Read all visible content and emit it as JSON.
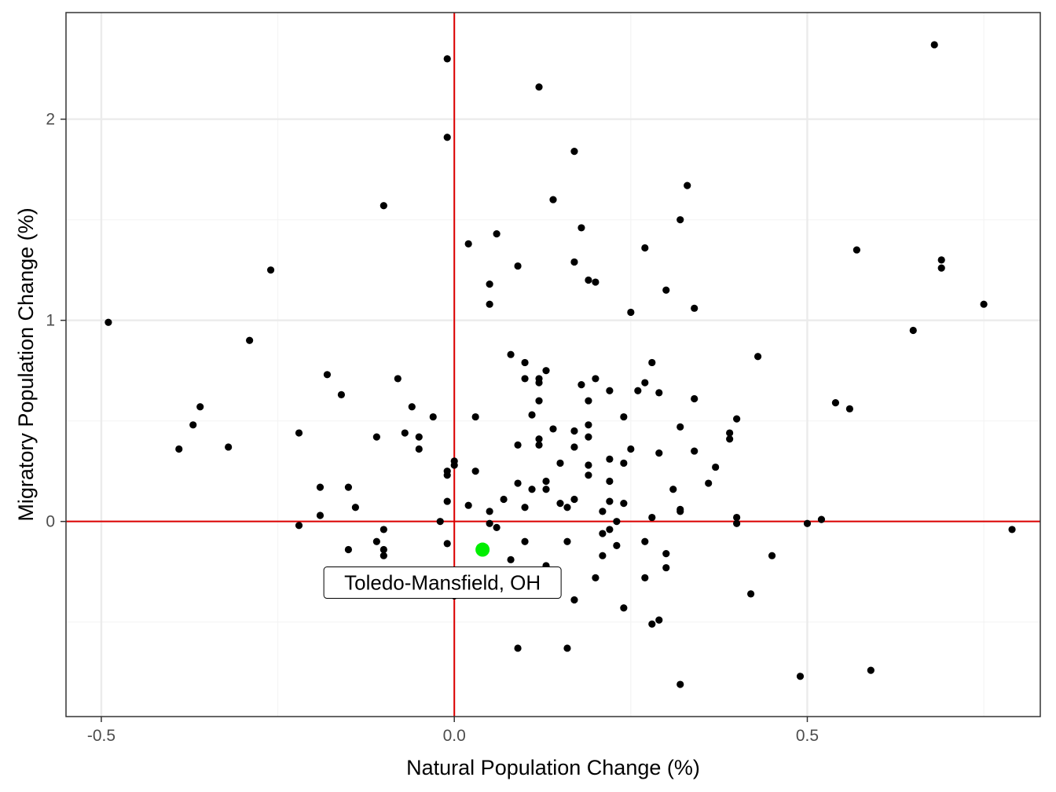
{
  "colors": {
    "background": "#ffffff",
    "panel_border": "#333333",
    "grid_major": "#ebebeb",
    "grid_minor": "#f4f4f4",
    "reference_line": "#dd0000",
    "point": "#000000",
    "highlight": "#00ee00"
  },
  "chart_data": {
    "type": "scatter",
    "title": "",
    "xlabel": "Natural Population Change (%)",
    "ylabel": "Migratory Population Change (%)",
    "xlim": [
      -0.55,
      0.83
    ],
    "ylim": [
      -0.97,
      2.53
    ],
    "x_ticks": [
      {
        "value": -0.5,
        "label": "-0.5"
      },
      {
        "value": 0.0,
        "label": "0.0"
      },
      {
        "value": 0.5,
        "label": "0.5"
      }
    ],
    "y_ticks": [
      {
        "value": 0,
        "label": "0"
      },
      {
        "value": 1,
        "label": "1"
      },
      {
        "value": 2,
        "label": "2"
      }
    ],
    "x_minor_ticks": [
      -0.25,
      0.25,
      0.75
    ],
    "y_minor_ticks": [
      -0.5,
      0.5,
      1.5
    ],
    "grid": true,
    "reference_lines": {
      "x": 0,
      "y": 0
    },
    "highlight": {
      "label": "Toledo-Mansfield, OH",
      "x": 0.04,
      "y": -0.14
    },
    "points": [
      {
        "x": -0.49,
        "y": 0.99
      },
      {
        "x": -0.39,
        "y": 0.36
      },
      {
        "x": -0.37,
        "y": 0.48
      },
      {
        "x": -0.36,
        "y": 0.57
      },
      {
        "x": -0.32,
        "y": 0.37
      },
      {
        "x": -0.29,
        "y": 0.9
      },
      {
        "x": -0.26,
        "y": 1.25
      },
      {
        "x": -0.22,
        "y": 0.44
      },
      {
        "x": -0.22,
        "y": -0.02
      },
      {
        "x": -0.19,
        "y": 0.17
      },
      {
        "x": -0.19,
        "y": 0.03
      },
      {
        "x": -0.18,
        "y": 0.73
      },
      {
        "x": -0.16,
        "y": 0.63
      },
      {
        "x": -0.15,
        "y": 0.17
      },
      {
        "x": -0.15,
        "y": -0.14
      },
      {
        "x": -0.14,
        "y": 0.07
      },
      {
        "x": -0.11,
        "y": 0.42
      },
      {
        "x": -0.11,
        "y": -0.1
      },
      {
        "x": -0.1,
        "y": 1.57
      },
      {
        "x": -0.1,
        "y": -0.04
      },
      {
        "x": -0.1,
        "y": -0.14
      },
      {
        "x": -0.1,
        "y": -0.17
      },
      {
        "x": -0.08,
        "y": 0.71
      },
      {
        "x": -0.07,
        "y": 0.44
      },
      {
        "x": -0.06,
        "y": 0.57
      },
      {
        "x": -0.05,
        "y": 0.42
      },
      {
        "x": -0.05,
        "y": 0.36
      },
      {
        "x": -0.03,
        "y": 0.52
      },
      {
        "x": -0.02,
        "y": 0.0
      },
      {
        "x": -0.01,
        "y": 2.3
      },
      {
        "x": -0.01,
        "y": 1.91
      },
      {
        "x": -0.01,
        "y": 0.25
      },
      {
        "x": -0.01,
        "y": 0.23
      },
      {
        "x": -0.01,
        "y": 0.1
      },
      {
        "x": -0.01,
        "y": -0.11
      },
      {
        "x": 0.0,
        "y": 0.3
      },
      {
        "x": 0.0,
        "y": 0.28
      },
      {
        "x": 0.0,
        "y": -0.37
      },
      {
        "x": 0.02,
        "y": 1.38
      },
      {
        "x": 0.02,
        "y": 0.08
      },
      {
        "x": 0.03,
        "y": 0.52
      },
      {
        "x": 0.03,
        "y": 0.25
      },
      {
        "x": 0.05,
        "y": 1.18
      },
      {
        "x": 0.05,
        "y": 1.08
      },
      {
        "x": 0.05,
        "y": 0.05
      },
      {
        "x": 0.05,
        "y": -0.01
      },
      {
        "x": 0.06,
        "y": 1.43
      },
      {
        "x": 0.06,
        "y": -0.03
      },
      {
        "x": 0.07,
        "y": 0.11
      },
      {
        "x": 0.08,
        "y": 0.83
      },
      {
        "x": 0.08,
        "y": -0.19
      },
      {
        "x": 0.09,
        "y": 1.27
      },
      {
        "x": 0.09,
        "y": 0.38
      },
      {
        "x": 0.09,
        "y": 0.19
      },
      {
        "x": 0.09,
        "y": -0.63
      },
      {
        "x": 0.1,
        "y": 0.79
      },
      {
        "x": 0.1,
        "y": 0.71
      },
      {
        "x": 0.1,
        "y": 0.07
      },
      {
        "x": 0.1,
        "y": -0.1
      },
      {
        "x": 0.11,
        "y": 0.53
      },
      {
        "x": 0.11,
        "y": 0.16
      },
      {
        "x": 0.12,
        "y": 2.16
      },
      {
        "x": 0.12,
        "y": 0.71
      },
      {
        "x": 0.12,
        "y": 0.69
      },
      {
        "x": 0.12,
        "y": 0.6
      },
      {
        "x": 0.12,
        "y": 0.41
      },
      {
        "x": 0.12,
        "y": 0.38
      },
      {
        "x": 0.13,
        "y": 0.75
      },
      {
        "x": 0.13,
        "y": 0.2
      },
      {
        "x": 0.13,
        "y": 0.16
      },
      {
        "x": 0.13,
        "y": -0.22
      },
      {
        "x": 0.14,
        "y": 1.6
      },
      {
        "x": 0.14,
        "y": 0.46
      },
      {
        "x": 0.15,
        "y": 0.29
      },
      {
        "x": 0.15,
        "y": 0.09
      },
      {
        "x": 0.16,
        "y": 0.07
      },
      {
        "x": 0.16,
        "y": -0.1
      },
      {
        "x": 0.16,
        "y": -0.63
      },
      {
        "x": 0.17,
        "y": 1.84
      },
      {
        "x": 0.17,
        "y": 1.29
      },
      {
        "x": 0.17,
        "y": 0.45
      },
      {
        "x": 0.17,
        "y": 0.37
      },
      {
        "x": 0.17,
        "y": 0.11
      },
      {
        "x": 0.17,
        "y": -0.39
      },
      {
        "x": 0.18,
        "y": 1.46
      },
      {
        "x": 0.18,
        "y": 0.68
      },
      {
        "x": 0.19,
        "y": 1.2
      },
      {
        "x": 0.19,
        "y": 0.6
      },
      {
        "x": 0.19,
        "y": 0.48
      },
      {
        "x": 0.19,
        "y": 0.42
      },
      {
        "x": 0.19,
        "y": 0.28
      },
      {
        "x": 0.19,
        "y": 0.23
      },
      {
        "x": 0.2,
        "y": 1.19
      },
      {
        "x": 0.2,
        "y": 0.71
      },
      {
        "x": 0.2,
        "y": -0.28
      },
      {
        "x": 0.21,
        "y": 0.05
      },
      {
        "x": 0.21,
        "y": -0.06
      },
      {
        "x": 0.21,
        "y": -0.17
      },
      {
        "x": 0.22,
        "y": 0.65
      },
      {
        "x": 0.22,
        "y": 0.31
      },
      {
        "x": 0.22,
        "y": 0.2
      },
      {
        "x": 0.22,
        "y": 0.1
      },
      {
        "x": 0.22,
        "y": -0.04
      },
      {
        "x": 0.23,
        "y": 0.0
      },
      {
        "x": 0.23,
        "y": -0.12
      },
      {
        "x": 0.24,
        "y": 0.52
      },
      {
        "x": 0.24,
        "y": 0.29
      },
      {
        "x": 0.24,
        "y": 0.09
      },
      {
        "x": 0.24,
        "y": -0.43
      },
      {
        "x": 0.25,
        "y": 1.04
      },
      {
        "x": 0.25,
        "y": 0.36
      },
      {
        "x": 0.26,
        "y": 0.65
      },
      {
        "x": 0.27,
        "y": 1.36
      },
      {
        "x": 0.27,
        "y": 0.69
      },
      {
        "x": 0.27,
        "y": -0.1
      },
      {
        "x": 0.27,
        "y": -0.28
      },
      {
        "x": 0.28,
        "y": 0.79
      },
      {
        "x": 0.28,
        "y": 0.02
      },
      {
        "x": 0.28,
        "y": -0.51
      },
      {
        "x": 0.29,
        "y": 0.64
      },
      {
        "x": 0.29,
        "y": 0.34
      },
      {
        "x": 0.29,
        "y": -0.49
      },
      {
        "x": 0.3,
        "y": 1.15
      },
      {
        "x": 0.3,
        "y": -0.16
      },
      {
        "x": 0.3,
        "y": -0.23
      },
      {
        "x": 0.31,
        "y": 0.16
      },
      {
        "x": 0.32,
        "y": 1.5
      },
      {
        "x": 0.32,
        "y": 0.47
      },
      {
        "x": 0.32,
        "y": 0.06
      },
      {
        "x": 0.32,
        "y": 0.05
      },
      {
        "x": 0.32,
        "y": -0.81
      },
      {
        "x": 0.33,
        "y": 1.67
      },
      {
        "x": 0.34,
        "y": 1.06
      },
      {
        "x": 0.34,
        "y": 0.61
      },
      {
        "x": 0.34,
        "y": 0.35
      },
      {
        "x": 0.36,
        "y": 0.19
      },
      {
        "x": 0.37,
        "y": 0.27
      },
      {
        "x": 0.39,
        "y": 0.44
      },
      {
        "x": 0.39,
        "y": 0.41
      },
      {
        "x": 0.4,
        "y": 0.51
      },
      {
        "x": 0.4,
        "y": 0.02
      },
      {
        "x": 0.4,
        "y": -0.01
      },
      {
        "x": 0.42,
        "y": -0.36
      },
      {
        "x": 0.43,
        "y": 0.82
      },
      {
        "x": 0.45,
        "y": -0.17
      },
      {
        "x": 0.49,
        "y": -0.77
      },
      {
        "x": 0.5,
        "y": -0.01
      },
      {
        "x": 0.52,
        "y": 0.01
      },
      {
        "x": 0.54,
        "y": 0.59
      },
      {
        "x": 0.56,
        "y": 0.56
      },
      {
        "x": 0.57,
        "y": 1.35
      },
      {
        "x": 0.59,
        "y": -0.74
      },
      {
        "x": 0.65,
        "y": 0.95
      },
      {
        "x": 0.68,
        "y": 2.37
      },
      {
        "x": 0.69,
        "y": 1.3
      },
      {
        "x": 0.69,
        "y": 1.26
      },
      {
        "x": 0.75,
        "y": 1.08
      },
      {
        "x": 0.79,
        "y": -0.04
      }
    ]
  }
}
